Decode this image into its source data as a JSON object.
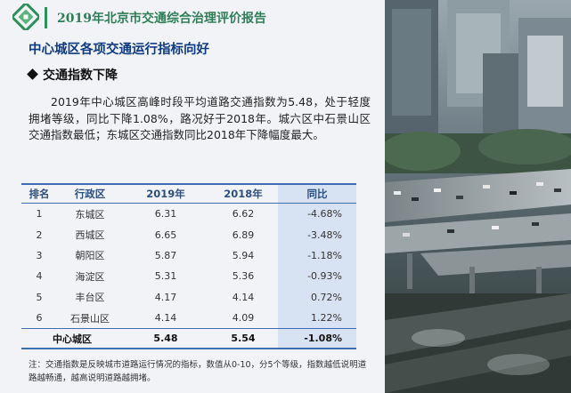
{
  "header": {
    "report_title": "2019年北京市交通综合治理评价报告",
    "logo_icon": "green-square-swirl-logo",
    "brand_color": "#2f7e58"
  },
  "section_title": "中心城区各项交通运行指标向好",
  "subheading": "交通指数下降",
  "paragraph": "2019年中心城区高峰时段平均道路交通指数为5.48，处于轻度拥堵等级，同比下降1.08%，路况好于2018年。城六区中石景山区交通指数最低；东城区交通指数同比2018年下降幅度最大。",
  "table": {
    "headers": [
      "排名",
      "行政区",
      "2019年",
      "2018年",
      "同比"
    ],
    "rows": [
      [
        "1",
        "东城区",
        "6.31",
        "6.62",
        "-4.68%"
      ],
      [
        "2",
        "西城区",
        "6.65",
        "6.89",
        "-3.48%"
      ],
      [
        "3",
        "朝阳区",
        "5.87",
        "5.94",
        "-1.18%"
      ],
      [
        "4",
        "海淀区",
        "5.31",
        "5.36",
        "-0.93%"
      ],
      [
        "5",
        "丰台区",
        "4.17",
        "4.14",
        "0.72%"
      ],
      [
        "6",
        "石景山区",
        "4.14",
        "4.09",
        "1.22%"
      ]
    ],
    "total": [
      "中心城区",
      "5.48",
      "5.54",
      "-1.08%"
    ],
    "accent_color": "#3f6db3",
    "highlight_color": "#d7e3f2"
  },
  "note": "注：交通指数是反映城市道路运行情况的指标，数值从0-10，分5个等级，指数越低说明道路越畅通，越高说明道路越拥堵。"
}
